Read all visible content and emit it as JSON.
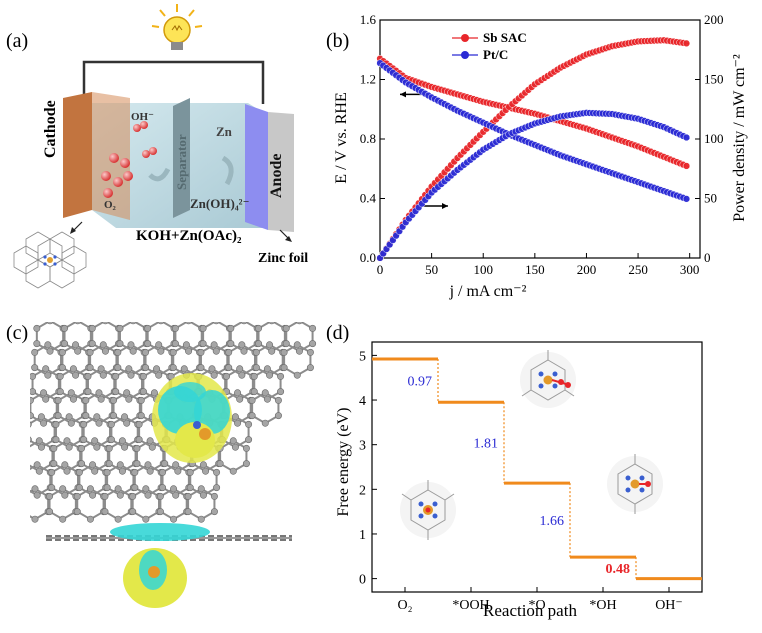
{
  "panels": {
    "a": {
      "label": "(a)",
      "cathode": "Cathode",
      "anode": "Anode",
      "separator": "Separator",
      "oh": "OH⁻",
      "o2": "O₂",
      "zn": "Zn",
      "znoh4": "Zn(OH)₄²⁻",
      "electrolyte": "KOH+Zn(OAc)₂",
      "zinc_foil": "Zinc foil"
    },
    "b": {
      "label": "(b)"
    },
    "c": {
      "label": "(c)"
    },
    "d": {
      "label": "(d)"
    }
  },
  "chart_data": [
    {
      "type": "line",
      "panel": "b",
      "xlabel": "j / mA cm⁻²",
      "ylabel_left": "E / V vs. RHE",
      "ylabel_right": "Power density / mW cm⁻²",
      "xlim": [
        0,
        310
      ],
      "ylim_left": [
        0.0,
        1.6
      ],
      "ylim_right": [
        0,
        200
      ],
      "xticks": [
        0,
        50,
        100,
        150,
        200,
        250,
        300
      ],
      "yticks_left": [
        "0.0",
        "0.4",
        "0.8",
        "1.2",
        "1.6"
      ],
      "yticks_right": [
        0,
        50,
        100,
        150,
        200
      ],
      "legend": [
        "Sb SAC",
        "Pt/C"
      ],
      "legend_position": "top-center",
      "series": [
        {
          "name": "Sb SAC",
          "axis": "left",
          "color": "#e8262a",
          "x": [
            0,
            25,
            50,
            75,
            100,
            125,
            150,
            175,
            200,
            225,
            250,
            275,
            300
          ],
          "y": [
            1.34,
            1.21,
            1.15,
            1.1,
            1.05,
            1.01,
            0.97,
            0.92,
            0.87,
            0.81,
            0.75,
            0.68,
            0.61
          ]
        },
        {
          "name": "Sb SAC",
          "axis": "right",
          "color": "#e8262a",
          "x": [
            0,
            25,
            50,
            75,
            100,
            125,
            150,
            175,
            200,
            225,
            250,
            275,
            300
          ],
          "y": [
            0,
            32,
            60,
            84,
            106,
            127,
            146,
            160,
            171,
            178,
            182,
            183,
            180
          ]
        },
        {
          "name": "Pt/C",
          "axis": "left",
          "color": "#2b2bd4",
          "x": [
            0,
            25,
            50,
            75,
            100,
            125,
            150,
            175,
            200,
            225,
            250,
            275,
            300
          ],
          "y": [
            1.31,
            1.18,
            1.08,
            0.99,
            0.91,
            0.83,
            0.76,
            0.69,
            0.63,
            0.57,
            0.51,
            0.45,
            0.39
          ]
        },
        {
          "name": "Pt/C",
          "axis": "right",
          "color": "#2b2bd4",
          "x": [
            0,
            25,
            50,
            75,
            100,
            125,
            150,
            175,
            200,
            225,
            250,
            275,
            300
          ],
          "y": [
            0,
            30,
            55,
            74,
            91,
            104,
            113,
            119,
            122,
            121,
            117,
            110,
            100
          ]
        }
      ]
    },
    {
      "type": "line",
      "panel": "d",
      "style": "energy-step",
      "xlabel": "Reaction path",
      "ylabel": "Free energy (eV)",
      "ylim": [
        -0.3,
        5.3
      ],
      "yticks": [
        "0",
        "1",
        "2",
        "3",
        "4",
        "5"
      ],
      "categories": [
        "O₂",
        "*OOH",
        "*O",
        "*OH",
        "OH⁻"
      ],
      "values": [
        4.92,
        3.95,
        2.14,
        0.48,
        0.0
      ],
      "step_labels": [
        "0.97",
        "1.81",
        "1.66",
        "0.48"
      ],
      "step_label_colors": [
        "#2b2bd4",
        "#2b2bd4",
        "#2b2bd4",
        "#e8262a"
      ],
      "color": "#f08a1c"
    }
  ]
}
